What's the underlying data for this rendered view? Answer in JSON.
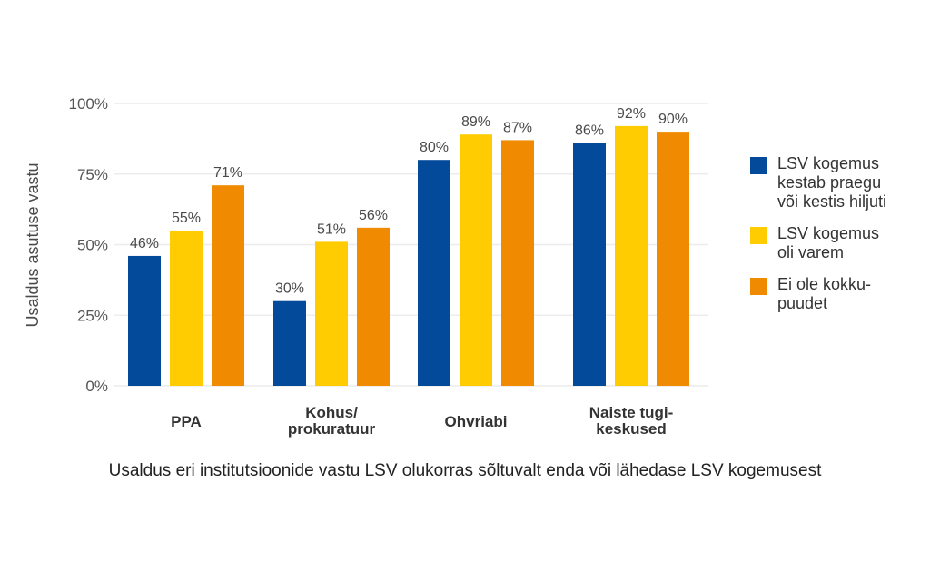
{
  "chart_data": {
    "type": "bar",
    "title": "Usaldus eri institutsioonide vastu LSV olukorras sõltuvalt enda või lähedase LSV kogemusest",
    "xlabel": "",
    "ylabel": "Usaldus asutuse vastu",
    "ylim": [
      0,
      100
    ],
    "yticks": [
      0,
      25,
      50,
      75,
      100
    ],
    "ytick_labels": [
      "0%",
      "25%",
      "50%",
      "75%",
      "100%"
    ],
    "grid": true,
    "legend_position": "right",
    "categories": [
      "PPA",
      "Kohus/\nprokuratuur",
      "Ohvriabi",
      "Naiste tugi-\nkeskused"
    ],
    "series": [
      {
        "name": "LSV kogemus\nkestab praegu\nvõi kestis hiljuti",
        "color": "#034a9a",
        "values": [
          46,
          30,
          80,
          86
        ],
        "labels": [
          "46%",
          "30%",
          "80%",
          "86%"
        ]
      },
      {
        "name": "LSV kogemus\noli varem",
        "color": "#fecc00",
        "values": [
          55,
          51,
          89,
          92
        ],
        "labels": [
          "55%",
          "51%",
          "89%",
          "92%"
        ]
      },
      {
        "name": "Ei ole kokku-\npuudet",
        "color": "#f08a00",
        "values": [
          71,
          56,
          87,
          90
        ],
        "labels": [
          "71%",
          "56%",
          "87%",
          "90%"
        ]
      }
    ]
  }
}
